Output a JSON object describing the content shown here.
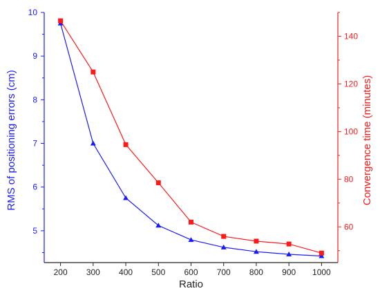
{
  "chart_data": {
    "type": "line",
    "title": "",
    "xlabel": "Ratio",
    "ylabel_left": "RMS of positioning errors (cm)",
    "ylabel_right": "Convergence time (minutes)",
    "x": [
      200,
      300,
      400,
      500,
      600,
      700,
      800,
      900,
      1000
    ],
    "x_ticks": [
      "200",
      "300",
      "400",
      "500",
      "600",
      "700",
      "800",
      "900",
      "1000"
    ],
    "xlim": [
      150,
      1050
    ],
    "ylim_left": [
      4.27,
      10
    ],
    "ylim_right": [
      45,
      150
    ],
    "y_ticks_left": [
      "5",
      "6",
      "7",
      "8",
      "9",
      "10"
    ],
    "y_ticks_right": [
      "60",
      "80",
      "100",
      "120",
      "140"
    ],
    "grid": false,
    "legend": "none",
    "series": [
      {
        "axis": "left",
        "color": "#1a1aff",
        "marker": "triangle",
        "values": [
          9.75,
          7.0,
          5.75,
          5.12,
          4.79,
          4.62,
          4.52,
          4.46,
          4.42
        ]
      },
      {
        "axis": "right",
        "color": "#ff1a1a",
        "marker": "square",
        "values": [
          146.5,
          125,
          94.5,
          78.5,
          62,
          56,
          54,
          52.8,
          49
        ]
      }
    ]
  }
}
